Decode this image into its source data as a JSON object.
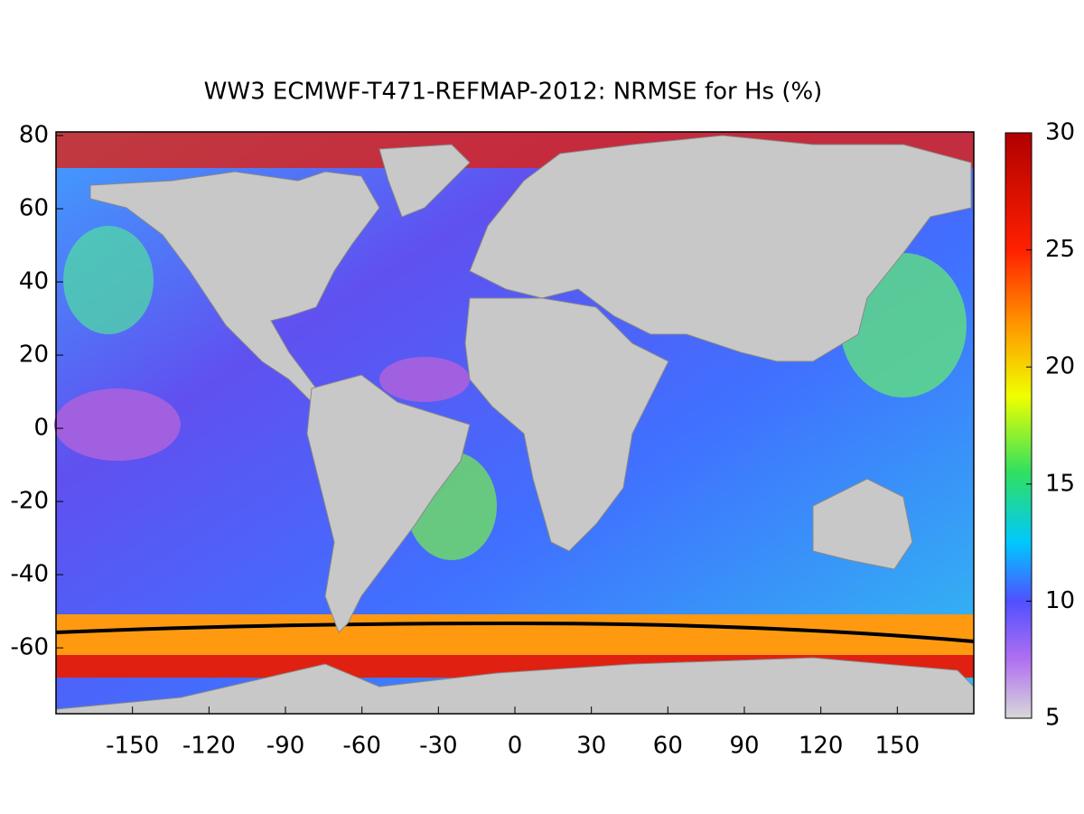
{
  "chart_data": {
    "type": "map",
    "title": "WW3 ECMWF-T471-REFMAP-2012: NRMSE for Hs (%)",
    "xlim": [
      -180,
      180
    ],
    "xticks": [
      -150,
      -120,
      -90,
      -60,
      -30,
      0,
      30,
      60,
      90,
      120,
      150
    ],
    "ylim": [
      -78,
      81
    ],
    "yticks": [
      -60,
      -40,
      -20,
      0,
      20,
      40,
      60,
      80
    ],
    "colorbar": {
      "lim": [
        5,
        30
      ],
      "ticks": [
        5,
        10,
        15,
        20,
        25,
        30
      ]
    }
  }
}
